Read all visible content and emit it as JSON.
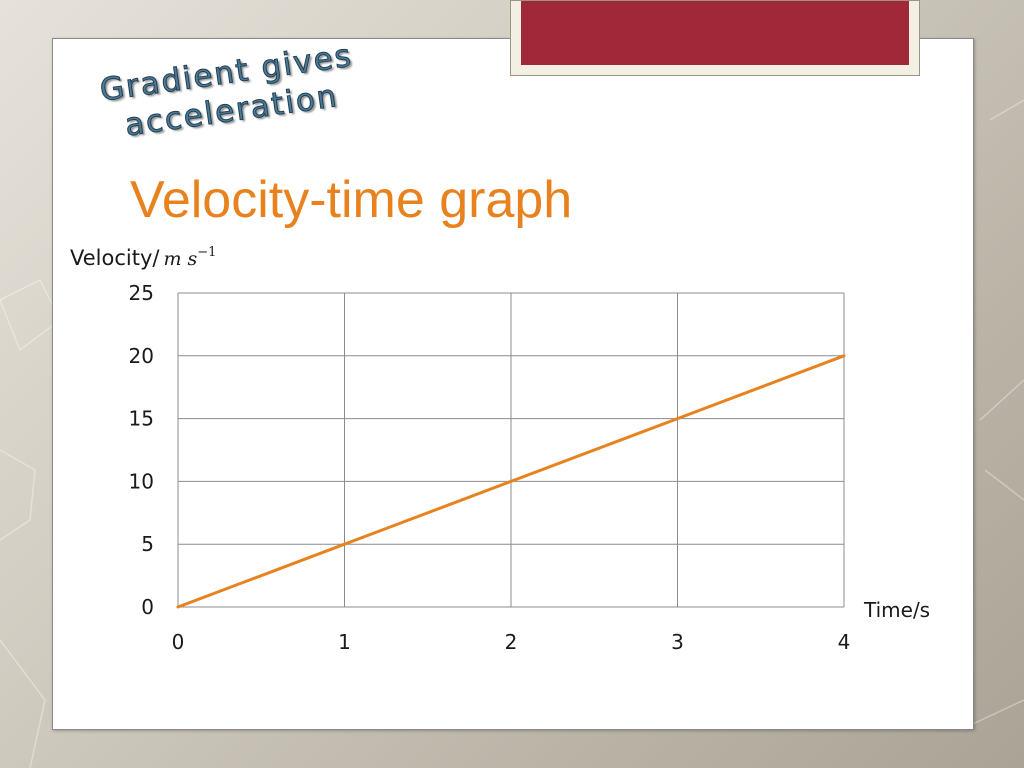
{
  "slide": {
    "wordart_line1": "Gradient gives",
    "wordart_line2": "acceleration",
    "title": "Velocity-time graph",
    "colors": {
      "title": "#e8821e",
      "accent_banner": "#a02838",
      "wordart": "#4d7a96",
      "line": "#e8821e",
      "grid": "#8c8c8c"
    }
  },
  "chart_data": {
    "type": "line",
    "title": "Velocity-time graph",
    "ylabel": "Velocity/",
    "ylabel_unit": "m s",
    "ylabel_unit_exp": "−1",
    "xlabel": "Time/s",
    "x": [
      0,
      1,
      2,
      3,
      4
    ],
    "series": [
      {
        "values": [
          0,
          5,
          10,
          15,
          20
        ]
      }
    ],
    "xlim": [
      0,
      4
    ],
    "ylim": [
      0,
      25
    ],
    "xticks": [
      "0",
      "1",
      "2",
      "3",
      "4"
    ],
    "yticks": [
      "0",
      "5",
      "10",
      "15",
      "20",
      "25"
    ],
    "grid": true,
    "legend": "none"
  }
}
